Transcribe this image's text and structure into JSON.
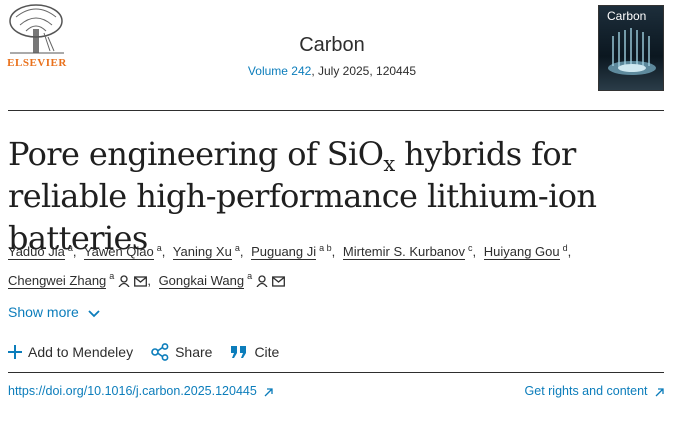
{
  "header": {
    "publisher": "ELSEVIER",
    "journal": "Carbon",
    "volume": "Volume 242",
    "issue_details": ", July 2025, 120445",
    "cover_title": "Carbon"
  },
  "title": {
    "before": "Pore engineering of SiO",
    "subscript": "x",
    "after": " hybrids for reliable high-performance lithium-ion batteries"
  },
  "authors": [
    {
      "name": "Yaduo Jia",
      "affiliations": "a",
      "contact": false
    },
    {
      "name": "Yawen Qiao",
      "affiliations": "a",
      "contact": false
    },
    {
      "name": "Yaning Xu",
      "affiliations": "a",
      "contact": false
    },
    {
      "name": "Puguang Ji",
      "affiliations": "a b",
      "contact": false
    },
    {
      "name": "Mirtemir S. Kurbanov",
      "affiliations": "c",
      "contact": false
    },
    {
      "name": "Huiyang Gou",
      "affiliations": "d",
      "contact": false
    },
    {
      "name": "Chengwei Zhang",
      "affiliations": "a",
      "contact": true
    },
    {
      "name": "Gongkai Wang",
      "affiliations": "a",
      "contact": true
    }
  ],
  "show_more": "Show more",
  "actions": [
    "Add to Mendeley",
    "Share",
    "Cite"
  ],
  "doi": "https://doi.org/10.1016/j.carbon.2025.120445",
  "rights": "Get rights and content"
}
